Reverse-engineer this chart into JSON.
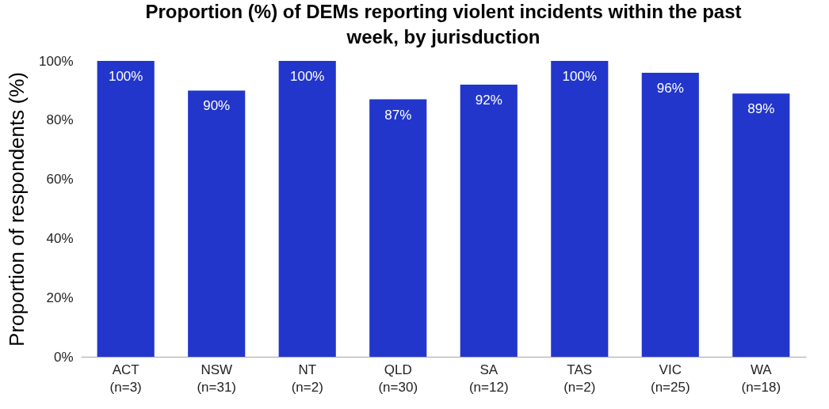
{
  "chart_data": {
    "type": "bar",
    "title": "Proportion (%) of DEMs reporting violent incidents within the past week, by jurisduction",
    "ylabel": "Proportion of respondents (%)",
    "categories": [
      "ACT\n(n=3)",
      "NSW\n(n=31)",
      "NT\n(n=2)",
      "QLD\n(n=30)",
      "SA\n(n=12)",
      "TAS\n(n=2)",
      "VIC\n(n=25)",
      "WA\n(n=18)"
    ],
    "values": [
      100,
      90,
      100,
      87,
      92,
      100,
      96,
      89
    ],
    "value_labels": [
      "100%",
      "90%",
      "100%",
      "87%",
      "92%",
      "100%",
      "96%",
      "89%"
    ],
    "color": "#2236cc",
    "ylim": [
      0,
      100
    ],
    "yticks": [
      {
        "value": 0,
        "label": "0%"
      },
      {
        "value": 20,
        "label": "20%"
      },
      {
        "value": 40,
        "label": "40%"
      },
      {
        "value": 60,
        "label": "60%"
      },
      {
        "value": 80,
        "label": "80%"
      },
      {
        "value": 100,
        "label": "100%"
      }
    ],
    "grid": false
  }
}
